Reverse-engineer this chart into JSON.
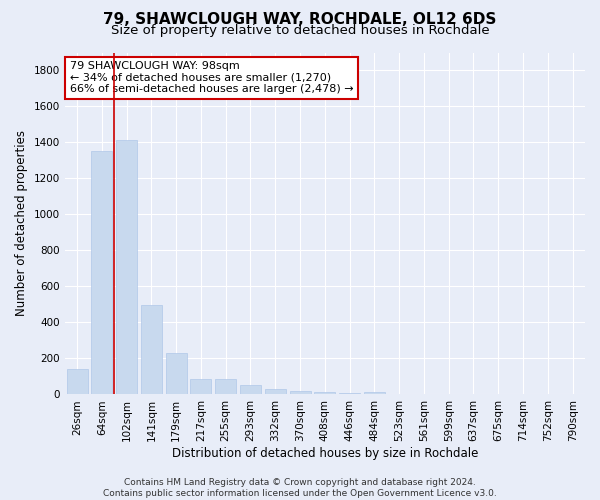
{
  "title1": "79, SHAWCLOUGH WAY, ROCHDALE, OL12 6DS",
  "title2": "Size of property relative to detached houses in Rochdale",
  "xlabel": "Distribution of detached houses by size in Rochdale",
  "ylabel": "Number of detached properties",
  "bar_labels": [
    "26sqm",
    "64sqm",
    "102sqm",
    "141sqm",
    "179sqm",
    "217sqm",
    "255sqm",
    "293sqm",
    "332sqm",
    "370sqm",
    "408sqm",
    "446sqm",
    "484sqm",
    "523sqm",
    "561sqm",
    "599sqm",
    "637sqm",
    "675sqm",
    "714sqm",
    "752sqm",
    "790sqm"
  ],
  "bar_values": [
    140,
    1355,
    1415,
    495,
    228,
    85,
    85,
    50,
    30,
    20,
    15,
    10,
    15,
    0,
    0,
    0,
    0,
    0,
    0,
    0,
    0
  ],
  "bar_color": "#c8d9ee",
  "bar_edgecolor": "#b0c8e8",
  "bar_width": 0.85,
  "vline_x_index": 2,
  "vline_color": "#cc0000",
  "annotation_line1": "79 SHAWCLOUGH WAY: 98sqm",
  "annotation_line2": "← 34% of detached houses are smaller (1,270)",
  "annotation_line3": "66% of semi-detached houses are larger (2,478) →",
  "annotation_box_color": "#ffffff",
  "annotation_box_edgecolor": "#cc0000",
  "ylim": [
    0,
    1900
  ],
  "yticks": [
    0,
    200,
    400,
    600,
    800,
    1000,
    1200,
    1400,
    1600,
    1800
  ],
  "bg_color": "#e8edf8",
  "plot_bg_color": "#e8edf8",
  "grid_color": "#ffffff",
  "footnote": "Contains HM Land Registry data © Crown copyright and database right 2024.\nContains public sector information licensed under the Open Government Licence v3.0.",
  "title1_fontsize": 11,
  "title2_fontsize": 9.5,
  "annotation_fontsize": 8,
  "xlabel_fontsize": 8.5,
  "ylabel_fontsize": 8.5,
  "tick_fontsize": 7.5,
  "footnote_fontsize": 6.5
}
